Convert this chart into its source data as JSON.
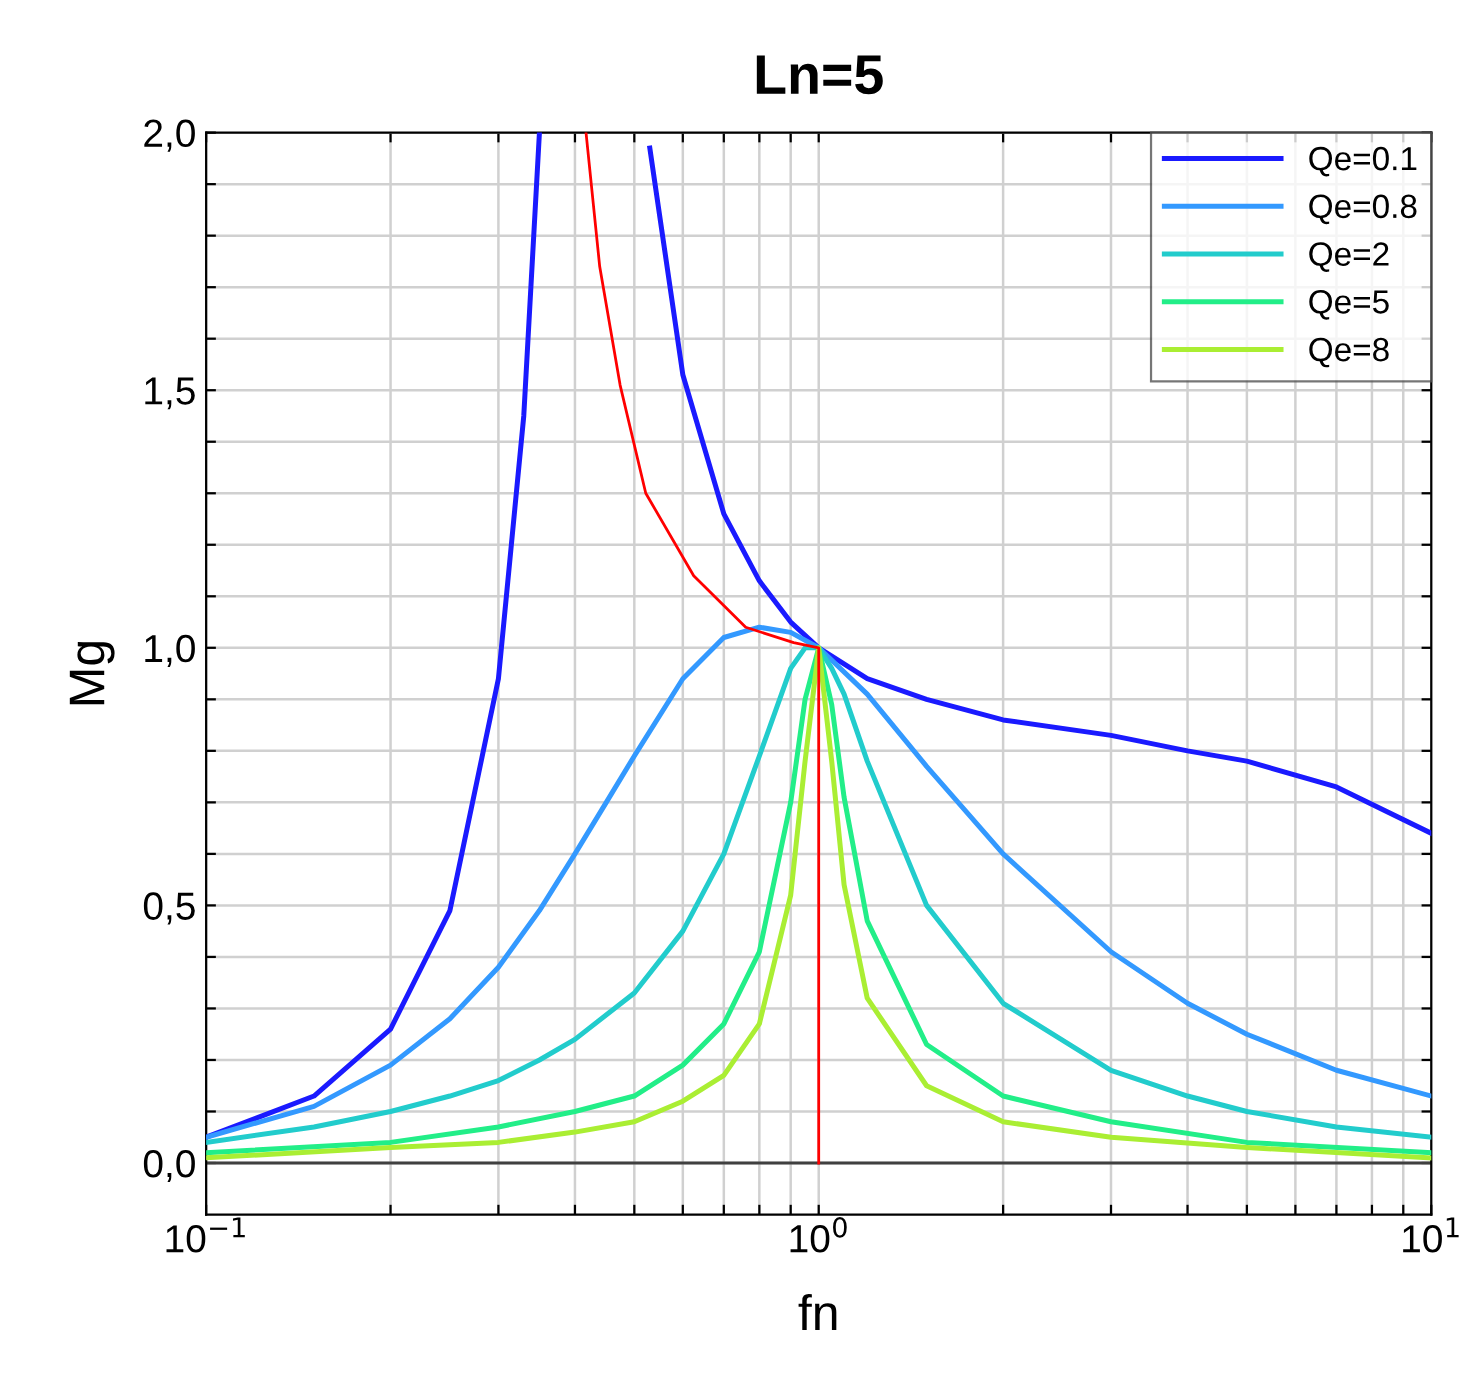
{
  "chart_data": {
    "type": "line",
    "title": "Ln=5",
    "xlabel": "fn",
    "ylabel": "Mg",
    "log": "x",
    "grid": true,
    "legend": "top right",
    "marker": "none",
    "line_style": "solid",
    "xlim": [
      0.1,
      10
    ],
    "xticks": [
      {
        "value": 0.1,
        "label": "10$^{−1}$"
      },
      {
        "value": 0.2,
        "label": null
      },
      {
        "value": 0.3,
        "label": null
      },
      {
        "value": 0.4,
        "label": null
      },
      {
        "value": 0.5,
        "label": null
      },
      {
        "value": 0.6,
        "label": null
      },
      {
        "value": 0.7,
        "label": null
      },
      {
        "value": 0.8,
        "label": null
      },
      {
        "value": 0.9,
        "label": null
      },
      {
        "value": 1,
        "label": "10$^{0}$"
      },
      {
        "value": 2,
        "label": null
      },
      {
        "value": 3,
        "label": null
      },
      {
        "value": 4,
        "label": null
      },
      {
        "value": 5,
        "label": null
      },
      {
        "value": 6,
        "label": null
      },
      {
        "value": 7,
        "label": null
      },
      {
        "value": 8,
        "label": null
      },
      {
        "value": 9,
        "label": null
      },
      {
        "value": 10,
        "label": "10$^{1}$"
      }
    ],
    "ylim": [
      -0.1,
      2.0
    ],
    "yticks": [
      {
        "value": 0,
        "label": "0,0"
      },
      {
        "value": 0.1,
        "label": null
      },
      {
        "value": 0.2,
        "label": null
      },
      {
        "value": 0.3,
        "label": null
      },
      {
        "value": 0.4,
        "label": null
      },
      {
        "value": 0.5,
        "label": "0,5"
      },
      {
        "value": 0.6,
        "label": null
      },
      {
        "value": 0.7,
        "label": null
      },
      {
        "value": 0.8,
        "label": null
      },
      {
        "value": 0.9,
        "label": null
      },
      {
        "value": 1.0,
        "label": "1,0"
      },
      {
        "value": 1.1,
        "label": null
      },
      {
        "value": 1.2,
        "label": null
      },
      {
        "value": 1.3,
        "label": null
      },
      {
        "value": 1.4,
        "label": null
      },
      {
        "value": 1.5,
        "label": "1,5"
      },
      {
        "value": 1.6,
        "label": null
      },
      {
        "value": 1.7,
        "label": null
      },
      {
        "value": 1.8,
        "label": null
      },
      {
        "value": 1.9,
        "label": null
      },
      {
        "value": 2.0,
        "label": "2,0"
      }
    ],
    "ref_lines": [
      {
        "axis": "y",
        "value": 0,
        "color": "#404040"
      }
    ],
    "series": [
      {
        "name": "Qe=0.1",
        "color": "#1a1aff",
        "x": [
          0.1,
          0.15,
          0.2,
          0.25,
          0.3,
          0.33,
          0.35,
          0.4,
          0.45,
          0.5,
          0.53,
          0.6,
          0.7,
          0.8,
          0.9,
          1,
          1.2,
          1.5,
          2,
          3,
          4,
          5,
          7,
          10
        ],
        "values": [
          0.05,
          0.13,
          0.26,
          0.49,
          0.94,
          1.45,
          2.0,
          null,
          null,
          null,
          1.97,
          1.53,
          1.26,
          1.13,
          1.05,
          1.0,
          0.94,
          0.9,
          0.86,
          0.83,
          0.8,
          0.78,
          0.73,
          0.64
        ]
      },
      {
        "name": "Qe=0.8",
        "color": "#3399ff",
        "x": [
          0.1,
          0.15,
          0.2,
          0.25,
          0.3,
          0.35,
          0.4,
          0.45,
          0.5,
          0.6,
          0.7,
          0.8,
          0.9,
          1,
          1.2,
          1.5,
          2,
          3,
          4,
          5,
          7,
          10
        ],
        "values": [
          0.05,
          0.11,
          0.19,
          0.28,
          0.38,
          0.49,
          0.6,
          0.7,
          0.79,
          0.94,
          1.02,
          1.04,
          1.03,
          1.0,
          0.91,
          0.77,
          0.6,
          0.41,
          0.31,
          0.25,
          0.18,
          0.13
        ]
      },
      {
        "name": "Qe=2",
        "color": "#22cccc",
        "x": [
          0.1,
          0.15,
          0.2,
          0.25,
          0.3,
          0.35,
          0.4,
          0.5,
          0.6,
          0.7,
          0.8,
          0.9,
          0.95,
          1,
          1.05,
          1.1,
          1.2,
          1.5,
          2,
          3,
          4,
          5,
          7,
          10
        ],
        "values": [
          0.04,
          0.07,
          0.1,
          0.13,
          0.16,
          0.2,
          0.24,
          0.33,
          0.45,
          0.6,
          0.79,
          0.96,
          1.0,
          1.0,
          0.96,
          0.91,
          0.78,
          0.5,
          0.31,
          0.18,
          0.13,
          0.1,
          0.07,
          0.05
        ]
      },
      {
        "name": "Qe=5",
        "color": "#22ee88",
        "x": [
          0.1,
          0.2,
          0.3,
          0.4,
          0.5,
          0.6,
          0.7,
          0.8,
          0.9,
          0.95,
          1,
          1.05,
          1.1,
          1.2,
          1.5,
          2,
          3,
          5,
          10
        ],
        "values": [
          0.02,
          0.04,
          0.07,
          0.1,
          0.13,
          0.19,
          0.27,
          0.41,
          0.7,
          0.9,
          1.0,
          0.89,
          0.71,
          0.47,
          0.23,
          0.13,
          0.08,
          0.04,
          0.02
        ]
      },
      {
        "name": "Qe=8",
        "color": "#aaee33",
        "x": [
          0.1,
          0.2,
          0.3,
          0.4,
          0.5,
          0.6,
          0.7,
          0.8,
          0.9,
          0.95,
          1,
          1.05,
          1.1,
          1.2,
          1.5,
          2,
          3,
          5,
          10
        ],
        "values": [
          0.01,
          0.03,
          0.04,
          0.06,
          0.08,
          0.12,
          0.17,
          0.27,
          0.52,
          0.78,
          1.0,
          0.78,
          0.54,
          0.32,
          0.15,
          0.08,
          0.05,
          0.03,
          0.01
        ]
      },
      {
        "color": "#ff0000",
        "x": [
          0.417,
          0.439,
          0.474,
          0.522,
          0.625,
          0.76,
          0.91,
          1,
          1
        ],
        "values": [
          2.0,
          1.74,
          1.51,
          1.3,
          1.14,
          1.04,
          1.01,
          1.0,
          0.0
        ]
      }
    ]
  }
}
